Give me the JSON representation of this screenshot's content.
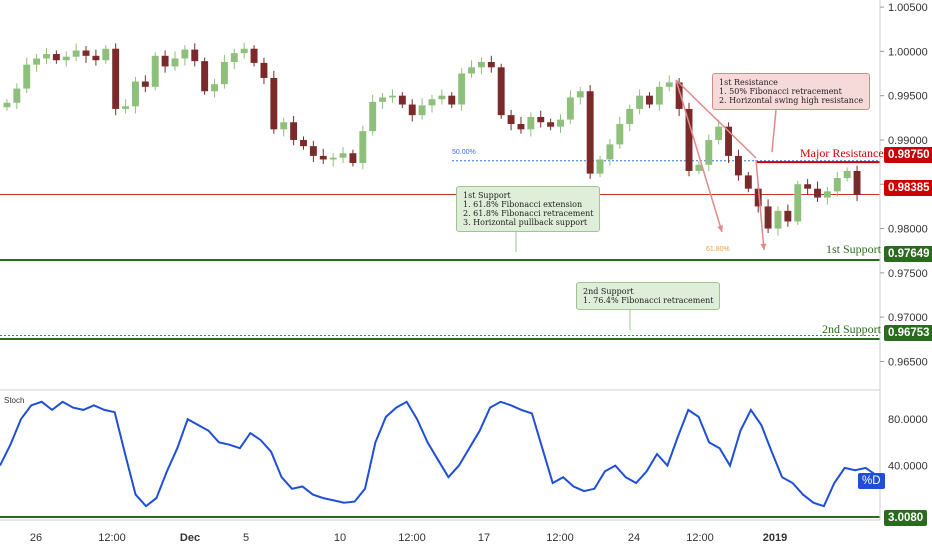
{
  "colors": {
    "up_candle": "#8ec07c",
    "down_candle": "#7a2a2a",
    "resistance": "#cc0000",
    "support": "#2b6b1d",
    "stoch_line": "#1f4fd6",
    "dotted_blue": "#3a6fd8",
    "current_price_line": "#cc3333"
  },
  "price_axis": {
    "ticks": [
      "1.00500",
      "1.00000",
      "0.99500",
      "0.99000",
      "0.98500",
      "0.98000",
      "0.97500",
      "0.97000",
      "0.96500"
    ]
  },
  "levels": {
    "major_resistance": {
      "label": "Major Resistance",
      "price": "0.98750"
    },
    "current": {
      "price": "0.98385"
    },
    "first_support": {
      "label": "1st Support",
      "price": "0.97649"
    },
    "second_support": {
      "label": "2nd Support",
      "price": "0.96753"
    },
    "fib50_label": "50.00%",
    "fib618_label": "61.80%"
  },
  "annotations": {
    "first_resistance": "1st Resistance\n1. 50% Fibonacci retracement\n2. Horizontal swing high resistance",
    "first_support": "1st Support\n1. 61.8% Fibonacci extension\n2. 61.8% Fibonacci retracement\n3. Horizontal pullback support",
    "second_support": "2nd Support\n1. 76.4% Fibonacci retracement"
  },
  "stoch": {
    "title": "Stoch",
    "axis_ticks": [
      "80.0000",
      "40.0000"
    ],
    "current_label": "%D",
    "level_value": "3.0080"
  },
  "time_axis": [
    "26",
    "12:00",
    "Dec",
    "5",
    "10",
    "12:00",
    "17",
    "12:00",
    "24",
    "12:00",
    "2019"
  ],
  "chart_data": {
    "type": "line",
    "series": [
      {
        "name": "",
        "values": [
          0.9942,
          0.9958,
          0.9985,
          0.9992,
          0.9997,
          0.999,
          0.9994,
          1.0001,
          0.9995,
          0.999,
          1.0003,
          0.9935,
          0.9938,
          0.9966,
          0.996,
          0.9995,
          0.9983,
          0.9992,
          1.0002,
          0.9989,
          0.9955,
          0.9963,
          0.9988,
          0.9998,
          1.0003,
          0.9987,
          0.997,
          0.9912,
          0.992,
          0.99,
          0.9893,
          0.9882,
          0.9878,
          0.988,
          0.9885,
          0.9874,
          0.991,
          0.9943,
          0.9948,
          0.995,
          0.994,
          0.9928,
          0.9939,
          0.9946,
          0.995,
          0.994,
          0.9975,
          0.9982,
          0.9988,
          0.9982,
          0.9928,
          0.9918,
          0.9912,
          0.9926,
          0.992,
          0.9915,
          0.9923,
          0.9948,
          0.9955,
          0.9862,
          0.9878,
          0.9895,
          0.9918,
          0.9935,
          0.995,
          0.994,
          0.996,
          0.9965,
          0.9935,
          0.9865,
          0.9872,
          0.99,
          0.9915,
          0.9882,
          0.986,
          0.9845,
          0.9825,
          0.98,
          0.982,
          0.9808,
          0.985,
          0.9845,
          0.9835,
          0.9842,
          0.9857,
          0.9865,
          0.9838
        ]
      }
    ],
    "stoch_values": [
      40,
      58,
      80,
      92,
      95,
      88,
      95,
      90,
      88,
      92,
      88,
      86,
      50,
      15,
      5,
      12,
      35,
      55,
      80,
      75,
      70,
      60,
      58,
      55,
      68,
      62,
      52,
      30,
      20,
      22,
      15,
      12,
      10,
      8,
      9,
      20,
      60,
      82,
      90,
      95,
      80,
      60,
      45,
      30,
      40,
      55,
      70,
      90,
      95,
      92,
      88,
      85,
      55,
      25,
      30,
      22,
      18,
      20,
      35,
      40,
      30,
      25,
      35,
      50,
      40,
      65,
      88,
      82,
      60,
      55,
      40,
      70,
      88,
      75,
      52,
      30,
      25,
      15,
      8,
      5,
      25,
      38,
      36,
      38,
      32
    ],
    "ylim": [
      0.962,
      1.0058
    ],
    "stoch_ylim": [
      0,
      100
    ]
  }
}
